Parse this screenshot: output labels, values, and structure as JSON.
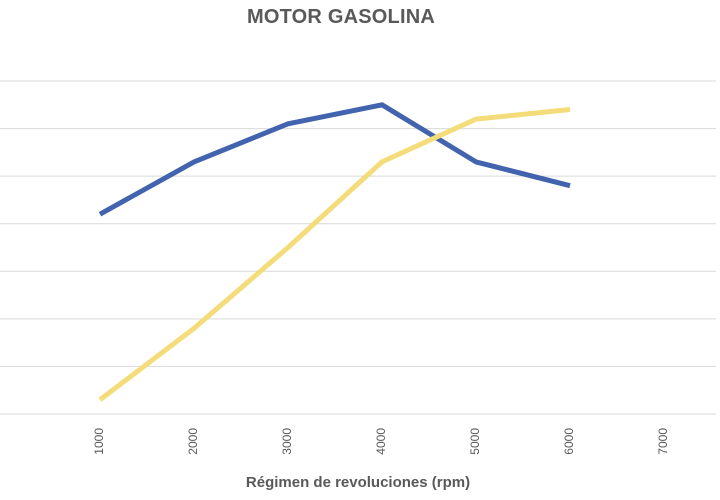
{
  "chart_data": {
    "type": "line",
    "title": "MOTOR GASOLINA",
    "xlabel": "Régimen de revoluciones (rpm)",
    "ylabel": "",
    "x": [
      1000,
      2000,
      3000,
      4000,
      5000,
      6000
    ],
    "x_ticks": [
      "1000",
      "2000",
      "3000",
      "4000",
      "5000",
      "6000",
      "7000"
    ],
    "ylim": [
      0,
      7
    ],
    "grid": true,
    "series": [
      {
        "color": "#4263AD",
        "values": [
          4.2,
          5.3,
          6.1,
          6.5,
          5.3,
          4.8
        ]
      },
      {
        "color": "#F5DC7A",
        "values": [
          0.3,
          1.8,
          3.5,
          5.3,
          6.2,
          6.4
        ]
      }
    ]
  }
}
